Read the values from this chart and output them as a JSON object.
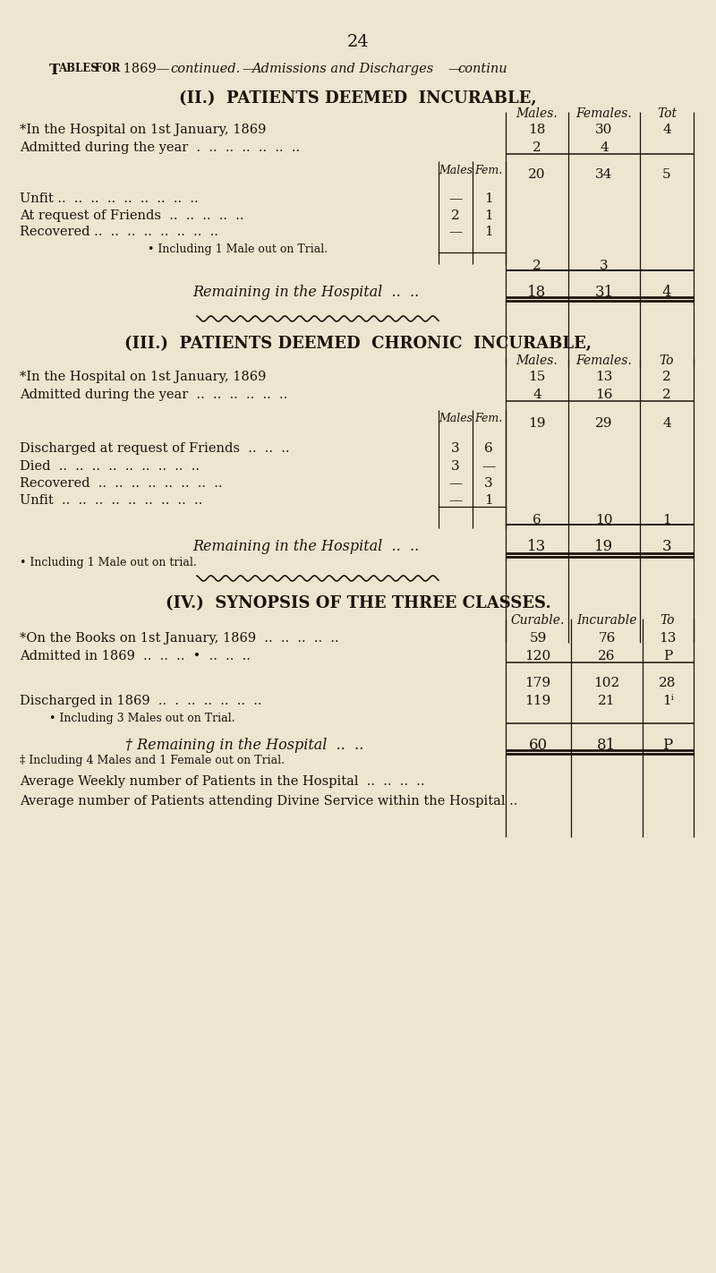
{
  "bg_color": "#ede5d0",
  "text_color": "#1e1208",
  "page_num": "24",
  "sec2_title": "(II.)  PATIENTS DEEMED  INCURABLE,",
  "sec3_title": "(III.)  PATIENTS DEEMED  CHRONIC  INCURABLE,",
  "sec4_title": "(IV.)  SYNOPSIS OF THE THREE CLASSES.",
  "sec2": {
    "r1_label": "*In the Hospital on 1st January, 1869",
    "r1_dots": "  ..  ..  ..  ..",
    "r1_m": "18",
    "r1_f": "30",
    "r1_t": "4",
    "r2_label": "Admitted during the year  .  ..  ..  ..  ..  ..  ..",
    "r2_m": "2",
    "r2_f": "4",
    "sub_m": "20",
    "sub_f": "34",
    "sub_t": "5",
    "inner": [
      {
        "label": "Unfit ..  ..  ..  ..  ..  ..  ..  ..  ..",
        "m": "—",
        "f": "1"
      },
      {
        "label": "At request of Friends  ..  ..  ..  ..  ..",
        "m": "2",
        "f": "1"
      },
      {
        "label": "Recovered ..  ..  ..  ..  ..  ..  ..  ..",
        "m": "—",
        "f": "1"
      }
    ],
    "note": "• Including 1 Male out on Trial.",
    "disc_m": "2",
    "disc_f": "3",
    "rem_label": "Remaining in the Hospital  ..  ..",
    "rem_m": "18",
    "rem_f": "31",
    "rem_t": "4"
  },
  "sec3": {
    "r1_label": "*In the Hospital on 1st January, 1869",
    "r1_dots": "  ..  ..  ..  ..",
    "r1_m": "15",
    "r1_f": "13",
    "r1_t": "2",
    "r2_label": "Admitted during the year  ..  ..  ..  ..  ..  ..",
    "r2_m": "4",
    "r2_f": "16",
    "r2_t": "2",
    "sub_m": "19",
    "sub_f": "29",
    "sub_t": "4",
    "inner": [
      {
        "label": "Discharged at request of Friends  ..  ..  ..",
        "m": "3",
        "f": "6"
      },
      {
        "label": "Died  ..  ..  ..  ..  ..  ..  ..  ..  ..",
        "m": "3",
        "f": "—"
      },
      {
        "label": "Recovered  ..  ..  ..  ..  ..  ..  ..  ..",
        "m": "—",
        "f": "3"
      },
      {
        "label": "Unfit  ..  ..  ..  ..  ..  ..  ..  ..  ..",
        "m": "—",
        "f": "1"
      }
    ],
    "disc_m": "6",
    "disc_f": "10",
    "disc_t": "1",
    "note": "• Including 1 Male out on trial.",
    "rem_label": "Remaining in the Hospital  ..  ..",
    "rem_m": "13",
    "rem_f": "19",
    "rem_t": "3"
  },
  "sec4": {
    "hdr": [
      "Curable.",
      "Incurable",
      "To"
    ],
    "rows": [
      {
        "label": "*On the Books on 1st January, 1869  ..  ..  ..  ..  ..",
        "c1": "59",
        "c2": "76",
        "c3": "13"
      },
      {
        "label": "Admitted in 1869  ..  ..  ..  •  ..  ..  ..",
        "c1": "120",
        "c2": "26",
        "c3": "P"
      }
    ],
    "sub": [
      "179",
      "102",
      "28"
    ],
    "disc_label": "Discharged in 1869  ..  .  ..  ..  ..  ..  ..",
    "disc": [
      "119",
      "21",
      "1ⁱ"
    ],
    "note1": "• Including 3 Males out on Trial.",
    "rem_label": "† Remaining in the Hospital  ..  ..",
    "rem": [
      "60",
      "81",
      "P"
    ],
    "note2": "‡ Including 4 Males and 1 Female out on Trial.",
    "avg1": "Average Weekly number of Patients in the Hospital  ..  ..  ..  ..",
    "avg2": "Average number of Patients attending Divine Service within the Hospital .."
  }
}
